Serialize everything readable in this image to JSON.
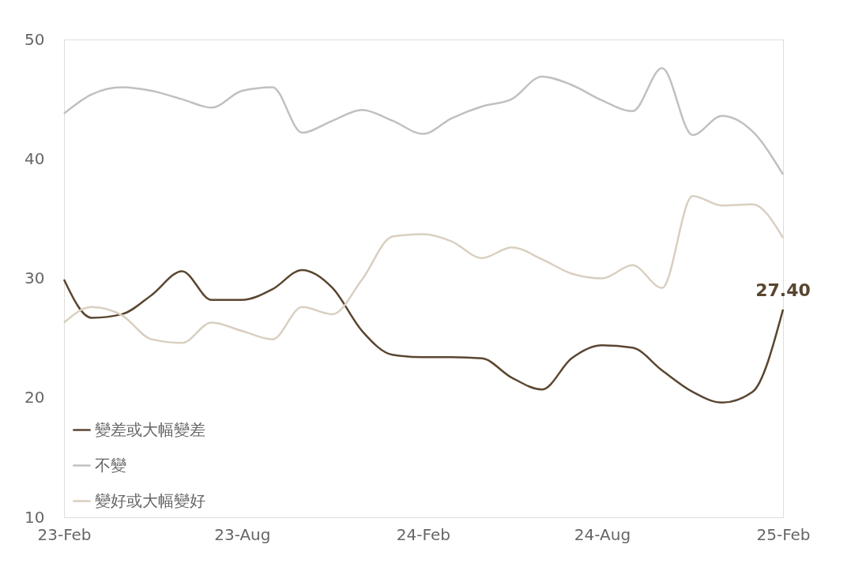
{
  "chart_data": {
    "type": "line",
    "x": [
      "2023-02",
      "2023-03",
      "2023-04",
      "2023-05",
      "2023-06",
      "2023-07",
      "2023-08",
      "2023-09",
      "2023-10",
      "2023-11",
      "2023-12",
      "2024-01",
      "2024-02",
      "2024-03",
      "2024-04",
      "2024-05",
      "2024-06",
      "2024-07",
      "2024-08",
      "2024-09",
      "2024-10",
      "2024-11",
      "2024-12",
      "2025-01",
      "2025-02"
    ],
    "series": [
      {
        "name": "變差或大幅變差",
        "color": "#5a4630",
        "values": [
          29.9,
          26.7,
          27.0,
          28.6,
          30.6,
          28.2,
          28.2,
          29.1,
          30.7,
          29.2,
          25.6,
          23.6,
          23.4,
          23.4,
          23.3,
          21.7,
          20.7,
          23.3,
          24.4,
          24.2,
          22.3,
          20.5,
          19.6,
          20.5,
          27.4
        ]
      },
      {
        "name": "不變",
        "color": "#c0c0c0",
        "values": [
          43.8,
          45.4,
          46.0,
          45.7,
          45.0,
          44.3,
          45.7,
          46.0,
          42.2,
          43.2,
          44.1,
          43.2,
          42.1,
          43.4,
          44.4,
          45.0,
          46.9,
          46.2,
          44.9,
          44.0,
          47.6,
          42.0,
          43.6,
          42.3,
          38.7
        ]
      },
      {
        "name": "變好或大幅變好",
        "color": "#d9cfc0",
        "values": [
          26.3,
          27.6,
          26.9,
          24.9,
          24.6,
          26.3,
          25.6,
          24.9,
          27.6,
          27.0,
          29.9,
          33.5,
          33.7,
          33.1,
          31.7,
          32.6,
          31.6,
          30.4,
          30.0,
          31.1,
          29.2,
          36.9,
          36.1,
          36.2,
          33.4
        ]
      }
    ],
    "xlim": [
      "2023-02",
      "2025-02"
    ],
    "xticks": [
      {
        "value": "2023-02",
        "label": "23-Feb"
      },
      {
        "value": "2023-08",
        "label": "23-Aug"
      },
      {
        "value": "2024-02",
        "label": "24-Feb"
      },
      {
        "value": "2024-08",
        "label": "24-Aug"
      },
      {
        "value": "2025-02",
        "label": "25-Feb"
      }
    ],
    "ylim": [
      10,
      50
    ],
    "yticks": [
      10,
      20,
      30,
      40,
      50
    ],
    "annotations": [
      {
        "text": "27.40",
        "x": "2025-02",
        "y": 27.4
      }
    ],
    "grid": false,
    "legend": "bottom left",
    "marker": "none",
    "line_style": "solid"
  }
}
